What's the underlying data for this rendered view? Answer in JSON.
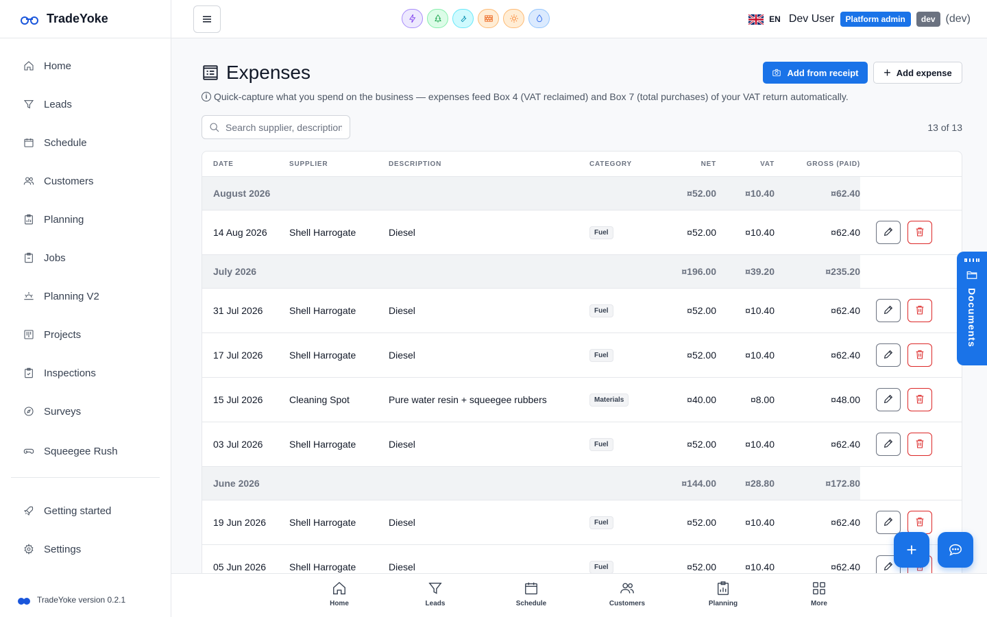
{
  "brand": {
    "name": "TradeYoke"
  },
  "sidebar": {
    "items": [
      {
        "label": "Home",
        "icon": "home-icon"
      },
      {
        "label": "Leads",
        "icon": "funnel-icon"
      },
      {
        "label": "Schedule",
        "icon": "calendar-icon"
      },
      {
        "label": "Customers",
        "icon": "users-icon"
      },
      {
        "label": "Planning",
        "icon": "chart-clipboard-icon"
      },
      {
        "label": "Jobs",
        "icon": "clipboard-icon"
      },
      {
        "label": "Planning V2",
        "icon": "sunrise-icon"
      },
      {
        "label": "Projects",
        "icon": "kanban-icon"
      },
      {
        "label": "Inspections",
        "icon": "clipboard-check-icon"
      },
      {
        "label": "Surveys",
        "icon": "compass-icon"
      },
      {
        "label": "Squeegee Rush",
        "icon": "gamepad-icon"
      }
    ],
    "bottom_items": [
      {
        "label": "Getting started",
        "icon": "rocket-icon"
      },
      {
        "label": "Settings",
        "icon": "gear-icon"
      }
    ],
    "version": "TradeYoke version 0.2.1"
  },
  "topbar": {
    "apps": [
      {
        "icon": "lightning-icon",
        "color": "#7c3aed",
        "bg": "#ede9fe"
      },
      {
        "icon": "tree-icon",
        "color": "#16a34a",
        "bg": "#dcfce7"
      },
      {
        "icon": "wrench-icon",
        "color": "#0891b2",
        "bg": "#cffafe"
      },
      {
        "icon": "brick-icon",
        "color": "#ea580c",
        "bg": "#ffedd5"
      },
      {
        "icon": "sun-icon",
        "color": "#f97316",
        "bg": "#ffedd5"
      },
      {
        "icon": "droplet-icon",
        "color": "#2563eb",
        "bg": "#dbeafe"
      }
    ],
    "lang": "EN",
    "user": "Dev User",
    "role_badge": "Platform admin",
    "env_badge": "dev",
    "env_text": "(dev)"
  },
  "page": {
    "title": "Expenses",
    "subtitle": "Quick-capture what you spend on the business — expenses feed Box 4 (VAT reclaimed) and Box 7 (total purchases) of your VAT return automatically.",
    "add_receipt": "Add from receipt",
    "add_expense": "Add expense",
    "search_placeholder": "Search supplier, description,",
    "count": "13 of 13"
  },
  "table": {
    "headers": {
      "date": "DATE",
      "supplier": "SUPPLIER",
      "description": "DESCRIPTION",
      "category": "CATEGORY",
      "net": "NET",
      "vat": "VAT",
      "gross": "GROSS (PAID)"
    },
    "groups": [
      {
        "label": "August 2026",
        "net": "¤52.00",
        "vat": "¤10.40",
        "gross": "¤62.40",
        "rows": [
          {
            "date": "14 Aug 2026",
            "supplier": "Shell Harrogate",
            "description": "Diesel",
            "category": "Fuel",
            "net": "¤52.00",
            "vat": "¤10.40",
            "gross": "¤62.40"
          }
        ]
      },
      {
        "label": "July 2026",
        "net": "¤196.00",
        "vat": "¤39.20",
        "gross": "¤235.20",
        "rows": [
          {
            "date": "31 Jul 2026",
            "supplier": "Shell Harrogate",
            "description": "Diesel",
            "category": "Fuel",
            "net": "¤52.00",
            "vat": "¤10.40",
            "gross": "¤62.40"
          },
          {
            "date": "17 Jul 2026",
            "supplier": "Shell Harrogate",
            "description": "Diesel",
            "category": "Fuel",
            "net": "¤52.00",
            "vat": "¤10.40",
            "gross": "¤62.40"
          },
          {
            "date": "15 Jul 2026",
            "supplier": "Cleaning Spot",
            "description": "Pure water resin + squeegee rubbers",
            "category": "Materials",
            "net": "¤40.00",
            "vat": "¤8.00",
            "gross": "¤48.00"
          },
          {
            "date": "03 Jul 2026",
            "supplier": "Shell Harrogate",
            "description": "Diesel",
            "category": "Fuel",
            "net": "¤52.00",
            "vat": "¤10.40",
            "gross": "¤62.40"
          }
        ]
      },
      {
        "label": "June 2026",
        "net": "¤144.00",
        "vat": "¤28.80",
        "gross": "¤172.80",
        "rows": [
          {
            "date": "19 Jun 2026",
            "supplier": "Shell Harrogate",
            "description": "Diesel",
            "category": "Fuel",
            "net": "¤52.00",
            "vat": "¤10.40",
            "gross": "¤62.40"
          },
          {
            "date": "05 Jun 2026",
            "supplier": "Shell Harrogate",
            "description": "Diesel",
            "category": "Fuel",
            "net": "¤52.00",
            "vat": "¤10.40",
            "gross": "¤62.40"
          }
        ]
      }
    ]
  },
  "documents_tab": "Documents",
  "bottom_nav": [
    {
      "label": "Home",
      "icon": "home-icon"
    },
    {
      "label": "Leads",
      "icon": "funnel-icon"
    },
    {
      "label": "Schedule",
      "icon": "calendar-icon"
    },
    {
      "label": "Customers",
      "icon": "users-icon"
    },
    {
      "label": "Planning",
      "icon": "chart-clipboard-icon"
    },
    {
      "label": "More",
      "icon": "grid-icon"
    }
  ]
}
